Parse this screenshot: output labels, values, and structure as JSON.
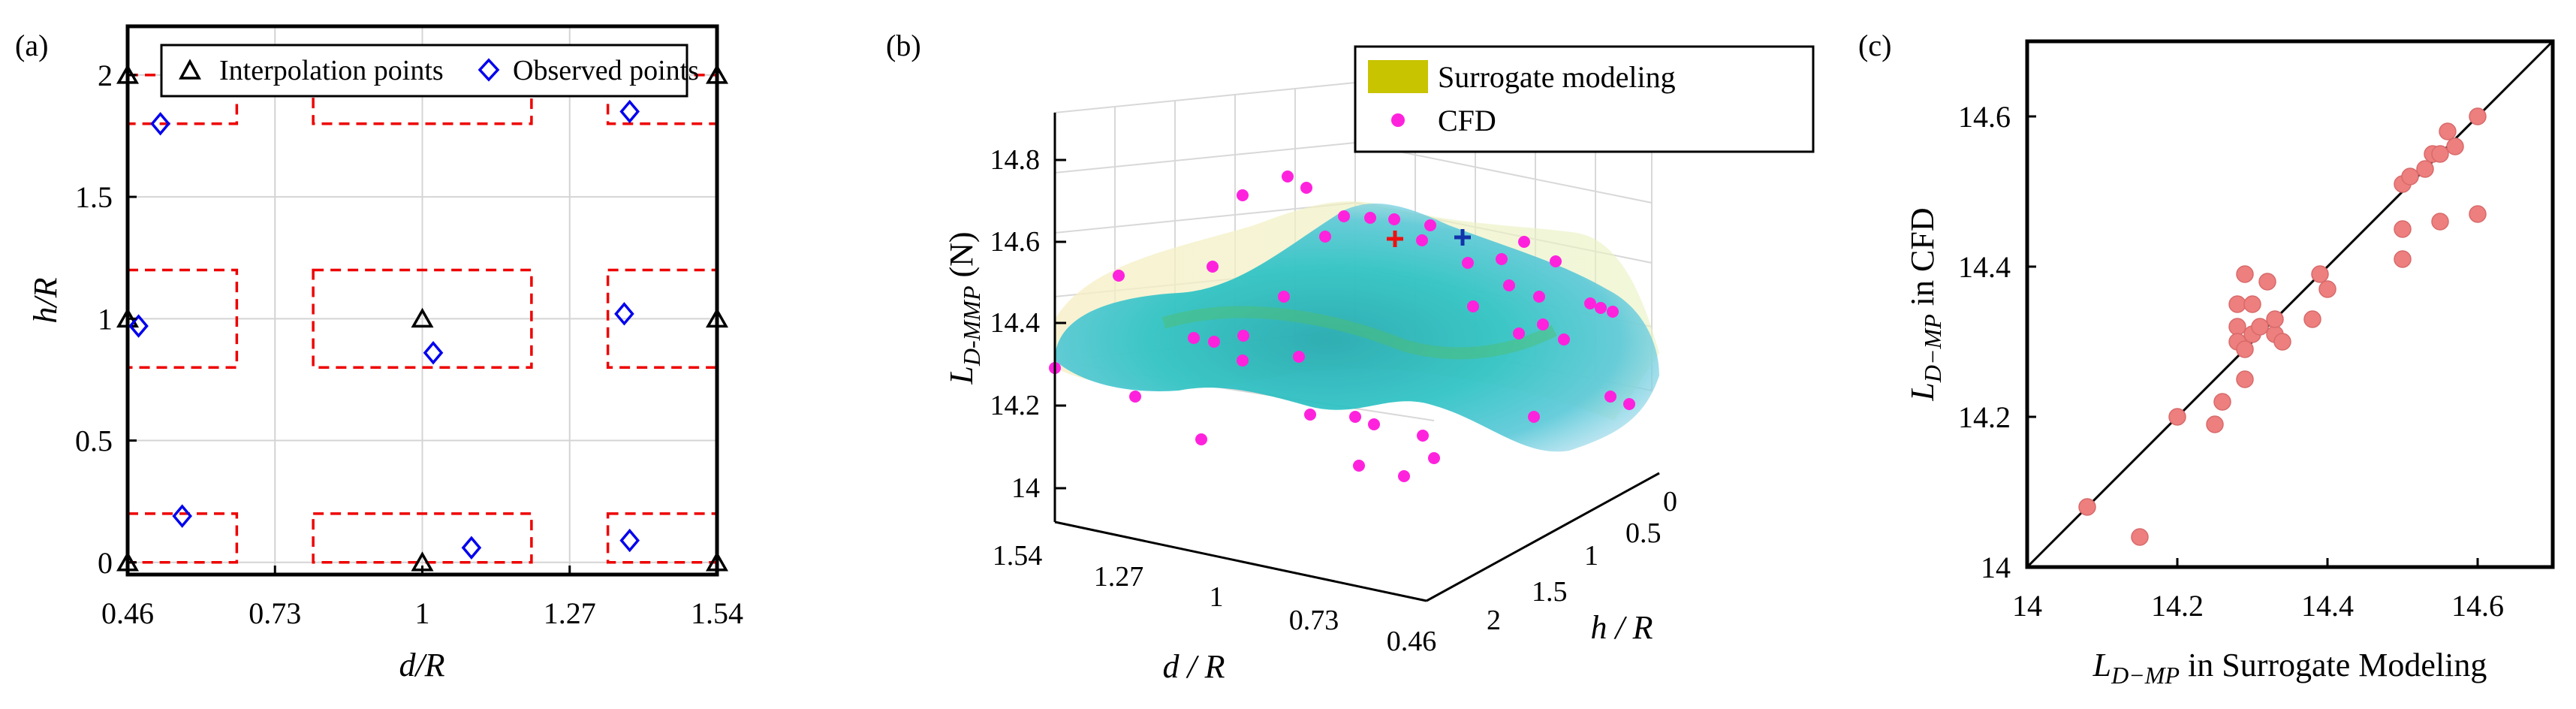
{
  "chart_data": [
    {
      "type": "scatter",
      "panel_label": "(a)",
      "xlabel": "d/R",
      "ylabel": "h/R",
      "xlim": [
        0.46,
        1.54
      ],
      "ylim": [
        -0.05,
        2.2
      ],
      "x_ticks": [
        0.46,
        0.73,
        1,
        1.27,
        1.54
      ],
      "x_tick_labels": [
        "0.46",
        "0.73",
        "1",
        "1.27",
        "1.54"
      ],
      "y_ticks": [
        0,
        0.5,
        1,
        1.5,
        2
      ],
      "y_tick_labels": [
        "0",
        "0.5",
        "1",
        "1.5",
        "2"
      ],
      "grid": true,
      "legend_position": "top",
      "series": [
        {
          "name": "Interpolation points",
          "marker": "triangle",
          "color": "#000000",
          "points": [
            [
              0.46,
              0
            ],
            [
              0.46,
              1
            ],
            [
              0.46,
              2
            ],
            [
              1,
              0
            ],
            [
              1,
              1
            ],
            [
              1,
              2
            ],
            [
              1.54,
              0
            ],
            [
              1.54,
              1
            ],
            [
              1.54,
              2
            ]
          ]
        },
        {
          "name": "Observed points",
          "marker": "diamond",
          "color": "#0000ee",
          "points": [
            [
              0.52,
              1.8
            ],
            [
              0.48,
              0.97
            ],
            [
              0.56,
              0.19
            ],
            [
              1.02,
              0.86
            ],
            [
              1.09,
              0.06
            ],
            [
              1.19,
              1.99
            ],
            [
              1.38,
              1.85
            ],
            [
              1.37,
              1.02
            ],
            [
              1.38,
              0.09
            ]
          ]
        }
      ],
      "regions": [
        {
          "x": [
            0.46,
            0.66
          ],
          "y": [
            1.8,
            2.0
          ]
        },
        {
          "x": [
            0.46,
            0.66
          ],
          "y": [
            0.8,
            1.2
          ]
        },
        {
          "x": [
            0.46,
            0.66
          ],
          "y": [
            0.0,
            0.2
          ]
        },
        {
          "x": [
            0.8,
            1.2
          ],
          "y": [
            1.8,
            2.0
          ]
        },
        {
          "x": [
            0.8,
            1.2
          ],
          "y": [
            0.8,
            1.2
          ]
        },
        {
          "x": [
            0.8,
            1.2
          ],
          "y": [
            0.0,
            0.2
          ]
        },
        {
          "x": [
            1.34,
            1.54
          ],
          "y": [
            1.8,
            2.0
          ]
        },
        {
          "x": [
            1.34,
            1.54
          ],
          "y": [
            0.8,
            1.2
          ]
        },
        {
          "x": [
            1.34,
            1.54
          ],
          "y": [
            0.0,
            0.2
          ]
        }
      ],
      "region_color": "#ee0000"
    },
    {
      "type": "surface",
      "panel_label": "(b)",
      "xlabel": "d / R",
      "ylabel": "h / R",
      "zlabel_main": "L",
      "zlabel_sub": "D-MMP",
      "zlabel_unit": " (N)",
      "x_tick_labels": [
        "1.54",
        "1.27",
        "1",
        "0.73",
        "0.46"
      ],
      "y_tick_labels": [
        "0",
        "0.5",
        "1",
        "1.5",
        "2"
      ],
      "z_tick_labels": [
        "14",
        "14.2",
        "14.4",
        "14.6",
        "14.8"
      ],
      "zlim": [
        14,
        14.8
      ],
      "legend_position": "top-right",
      "series": [
        {
          "name": "Surrogate modeling",
          "color": "#c8c400"
        },
        {
          "name": "CFD",
          "color": "#ff22dd"
        }
      ],
      "markers": [
        {
          "symbol": "+",
          "color": "#ee1111"
        },
        {
          "symbol": "+",
          "color": "#1133aa"
        }
      ]
    },
    {
      "type": "scatter",
      "panel_label": "(c)",
      "xlabel_main": "L",
      "xlabel_sub": "D−MP",
      "xlabel_rest": " in Surrogate Modeling",
      "ylabel_main": "L",
      "ylabel_sub": "D−MP",
      "ylabel_rest": " in CFD",
      "xlim": [
        14,
        14.7
      ],
      "ylim": [
        14,
        14.7
      ],
      "x_ticks": [
        14,
        14.2,
        14.4,
        14.6
      ],
      "x_tick_labels": [
        "14",
        "14.2",
        "14.4",
        "14.6"
      ],
      "y_ticks": [
        14,
        14.2,
        14.4,
        14.6
      ],
      "y_tick_labels": [
        "14",
        "14.2",
        "14.4",
        "14.6"
      ],
      "reference_line": "y = x",
      "grid": false,
      "marker_color": "#ee7f7f",
      "points": [
        [
          14.08,
          14.08
        ],
        [
          14.15,
          14.04
        ],
        [
          14.2,
          14.2
        ],
        [
          14.25,
          14.19
        ],
        [
          14.26,
          14.22
        ],
        [
          14.28,
          14.32
        ],
        [
          14.28,
          14.3
        ],
        [
          14.29,
          14.25
        ],
        [
          14.29,
          14.29
        ],
        [
          14.28,
          14.35
        ],
        [
          14.29,
          14.39
        ],
        [
          14.3,
          14.35
        ],
        [
          14.3,
          14.31
        ],
        [
          14.31,
          14.32
        ],
        [
          14.32,
          14.38
        ],
        [
          14.33,
          14.31
        ],
        [
          14.33,
          14.33
        ],
        [
          14.34,
          14.3
        ],
        [
          14.38,
          14.33
        ],
        [
          14.39,
          14.39
        ],
        [
          14.4,
          14.37
        ],
        [
          14.5,
          14.41
        ],
        [
          14.5,
          14.45
        ],
        [
          14.5,
          14.51
        ],
        [
          14.51,
          14.52
        ],
        [
          14.53,
          14.53
        ],
        [
          14.54,
          14.55
        ],
        [
          14.55,
          14.55
        ],
        [
          14.55,
          14.46
        ],
        [
          14.56,
          14.58
        ],
        [
          14.57,
          14.56
        ],
        [
          14.6,
          14.47
        ],
        [
          14.6,
          14.6
        ]
      ]
    }
  ]
}
